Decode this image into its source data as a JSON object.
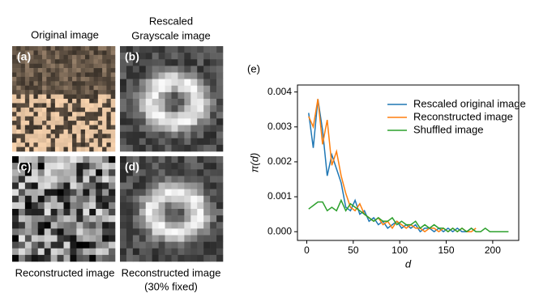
{
  "figure": {
    "titles": [
      "Original image",
      "Rescaled",
      "Grayscale image"
    ],
    "panel_labels": [
      "(a)",
      "(b)",
      "(c)",
      "(d)"
    ],
    "captions": [
      "Reconstructed image",
      "Reconstructed image",
      "(30% fixed)"
    ],
    "chart_label": "(e)"
  },
  "chart_data": {
    "type": "line",
    "x_label": "d",
    "y_label": "π(d)",
    "x": [
      2,
      7,
      12,
      17,
      22,
      27,
      32,
      37,
      42,
      47,
      52,
      57,
      62,
      67,
      72,
      77,
      82,
      87,
      92,
      97,
      102,
      107,
      112,
      117,
      122,
      127,
      132,
      137,
      142,
      147,
      152,
      157,
      162,
      167,
      172,
      177,
      182,
      187,
      192,
      197,
      202,
      207,
      212,
      217
    ],
    "series": [
      {
        "name": "Rescaled original image",
        "color": "#1f77b4",
        "values": [
          0.0034,
          0.0024,
          0.0038,
          0.0029,
          0.0016,
          0.0022,
          0.0018,
          0.0014,
          0.0007,
          0.0006,
          0.0009,
          0.0005,
          0.0006,
          0.0003,
          0.0004,
          0.0002,
          0.0003,
          0.0001,
          0.0002,
          0.0003,
          0.0001,
          0.0002,
          0.0001,
          0.0002,
          0,
          0.0001,
          0.0001,
          0,
          0.0001,
          0,
          0.0001,
          0,
          0.0001,
          0,
          0,
          0.0001,
          0,
          null,
          null,
          null,
          null,
          null,
          null,
          null
        ]
      },
      {
        "name": "Reconstructed image",
        "color": "#ff7f0e",
        "values": [
          0.0033,
          0.003,
          0.0038,
          0.0025,
          0.0032,
          0.0019,
          0.0023,
          0.0016,
          0.0011,
          0.0007,
          0.0006,
          0.0008,
          0.0005,
          0.0004,
          0.0003,
          0.0004,
          0.0002,
          0.0003,
          0.0001,
          0.0003,
          0.0002,
          0.0001,
          0.0002,
          0.0001,
          0.0001,
          0,
          0.0001,
          0.0001,
          0,
          0.0001,
          0,
          0.0001,
          0,
          0.0001,
          0,
          0,
          0.0001,
          null,
          null,
          null,
          null,
          null,
          null,
          null
        ]
      },
      {
        "name": "Shuffled image",
        "color": "#2ca02c",
        "values": [
          0.00065,
          0.00075,
          0.00085,
          0.00085,
          0.0006,
          0.0007,
          0.0006,
          0.0009,
          0.0006,
          0.0008,
          0.0007,
          0.0006,
          0.0005,
          0.0004,
          0.0003,
          0.0004,
          0.0003,
          0.0003,
          0.0004,
          0.0002,
          0.0003,
          0.0002,
          0.0002,
          0.0003,
          0.0001,
          0.0002,
          0.0001,
          0.0002,
          0.0001,
          0.0001,
          0,
          0.0001,
          0,
          0.0001,
          0,
          0.0001,
          0,
          0,
          0.0001,
          0,
          0,
          0,
          0,
          0
        ]
      }
    ],
    "xlim": [
      -10,
      228
    ],
    "ylim": [
      -0.00025,
      0.0042
    ],
    "xticks": [
      0,
      50,
      100,
      150,
      200
    ],
    "yticks": [
      {
        "value": 0,
        "label": "0.000"
      },
      0.001,
      0.002,
      0.003,
      0.004
    ],
    "legend": "upper right",
    "grid": false
  }
}
